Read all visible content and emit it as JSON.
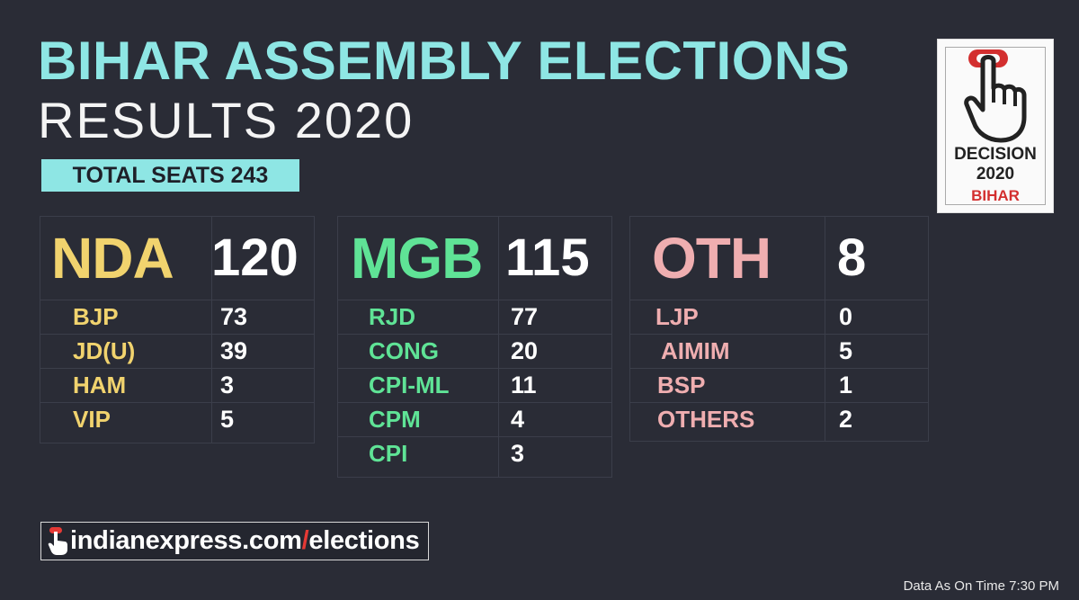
{
  "title": {
    "line1": "BIHAR ASSEMBLY ELECTIONS",
    "line2": "RESULTS  2020"
  },
  "total_seats_label": "TOTAL SEATS 243",
  "colors": {
    "title": "#8ee6e4",
    "badge_bg": "#8ee6e4",
    "nda": "#f1d36e",
    "mgb": "#5fe396",
    "oth": "#efaeb0",
    "background": "#2a2c36"
  },
  "alliances": [
    {
      "name": "NDA",
      "total": "120",
      "parties": [
        {
          "name": "BJP",
          "seats": "73"
        },
        {
          "name": "JD(U)",
          "seats": "39"
        },
        {
          "name": "HAM",
          "seats": "3"
        },
        {
          "name": "VIP",
          "seats": "5"
        }
      ]
    },
    {
      "name": "MGB",
      "total": "115",
      "parties": [
        {
          "name": "RJD",
          "seats": "77"
        },
        {
          "name": "CONG",
          "seats": "20"
        },
        {
          "name": "CPI-ML",
          "seats": "11"
        },
        {
          "name": "CPM",
          "seats": "4"
        },
        {
          "name": "CPI",
          "seats": "3"
        }
      ]
    },
    {
      "name": "OTH",
      "total": "8",
      "parties": [
        {
          "name": "LJP",
          "seats": "0"
        },
        {
          "name": "AIMIM",
          "seats": "5"
        },
        {
          "name": "BSP",
          "seats": "1"
        },
        {
          "name": "OTHERS",
          "seats": "2"
        }
      ]
    }
  ],
  "logo": {
    "icon": "pointing-hand-icon",
    "line1": "DECISION",
    "line2": "2020",
    "line3": "BIHAR"
  },
  "footer": {
    "url_icon": "pointing-hand-icon",
    "url_part1": "indianexpress.com",
    "url_slash": "/",
    "url_part2": "elections",
    "timestamp": "Data As On Time 7:30 PM"
  }
}
